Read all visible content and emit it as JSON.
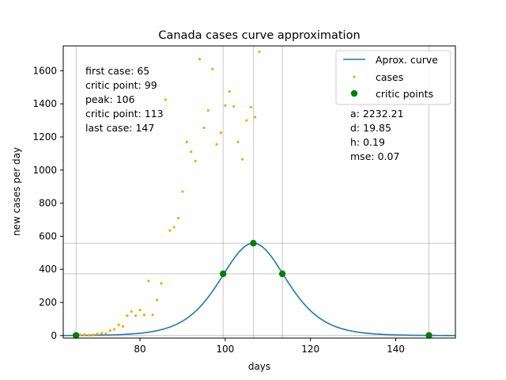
{
  "chart_data": {
    "type": "line",
    "title": "Canada cases curve approximation",
    "xlabel": "days",
    "ylabel": "new cases per day",
    "xlim": [
      62,
      154
    ],
    "ylim": [
      -15,
      1750
    ],
    "xticks": [
      80,
      100,
      120,
      140
    ],
    "yticks": [
      0,
      200,
      400,
      600,
      800,
      1000,
      1200,
      1400,
      1600
    ],
    "grid": false,
    "legend": {
      "placement": "upper right",
      "entries": [
        {
          "label": "Aprox. curve",
          "kind": "line",
          "color": "#1f77b4"
        },
        {
          "label": "cases",
          "kind": "small-dot",
          "color": "#ffa500"
        },
        {
          "label": "critic points",
          "kind": "dot",
          "color": "#008000"
        }
      ]
    },
    "annotations_left": [
      "first case: 65",
      "critic point: 99",
      "peak: 106",
      "critic point: 113",
      "last case: 147"
    ],
    "annotations_right": [
      "a: 2232.21",
      "d: 19.85",
      "h: 0.19",
      "mse: 0.07"
    ],
    "model": {
      "a": 2232.21,
      "d": 19.85,
      "h": 0.19,
      "peak_x": 106.6
    },
    "reference_lines": {
      "vertical": [
        65,
        99.5,
        106.6,
        113.4,
        147.8
      ],
      "horizontal": [
        1,
        373,
        558
      ]
    },
    "series": [
      {
        "name": "Aprox. curve",
        "type": "line",
        "color": "#1f77b4",
        "x_range": [
          62,
          154
        ]
      },
      {
        "name": "cases",
        "type": "scatter",
        "color": "#ffa500",
        "points": [
          [
            65,
            1
          ],
          [
            66,
            4
          ],
          [
            67,
            6
          ],
          [
            68,
            3
          ],
          [
            69,
            5
          ],
          [
            70,
            10
          ],
          [
            71,
            14
          ],
          [
            72,
            12
          ],
          [
            73,
            30
          ],
          [
            74,
            38
          ],
          [
            75,
            65
          ],
          [
            76,
            55
          ],
          [
            77,
            120
          ],
          [
            78,
            145
          ],
          [
            79,
            120
          ],
          [
            80,
            155
          ],
          [
            81,
            125
          ],
          [
            82,
            330
          ],
          [
            83,
            125
          ],
          [
            84,
            215
          ],
          [
            85,
            315
          ],
          [
            86,
            1425
          ],
          [
            87,
            635
          ],
          [
            88,
            655
          ],
          [
            89,
            710
          ],
          [
            90,
            870
          ],
          [
            91,
            1170
          ],
          [
            92,
            1110
          ],
          [
            93,
            1055
          ],
          [
            94,
            1670
          ],
          [
            95,
            1255
          ],
          [
            96,
            1360
          ],
          [
            97,
            1610
          ],
          [
            98,
            1155
          ],
          [
            99,
            1225
          ],
          [
            100,
            1390
          ],
          [
            101,
            1475
          ],
          [
            102,
            1385
          ],
          [
            103,
            1170
          ],
          [
            104,
            1065
          ],
          [
            105,
            1300
          ],
          [
            106,
            1380
          ],
          [
            107,
            1320
          ],
          [
            108,
            1715
          ]
        ]
      },
      {
        "name": "critic points",
        "type": "scatter",
        "color": "#008000",
        "points": [
          [
            65,
            1
          ],
          [
            99.5,
            373
          ],
          [
            106.6,
            558
          ],
          [
            113.4,
            373
          ],
          [
            147.8,
            1
          ]
        ]
      }
    ]
  }
}
